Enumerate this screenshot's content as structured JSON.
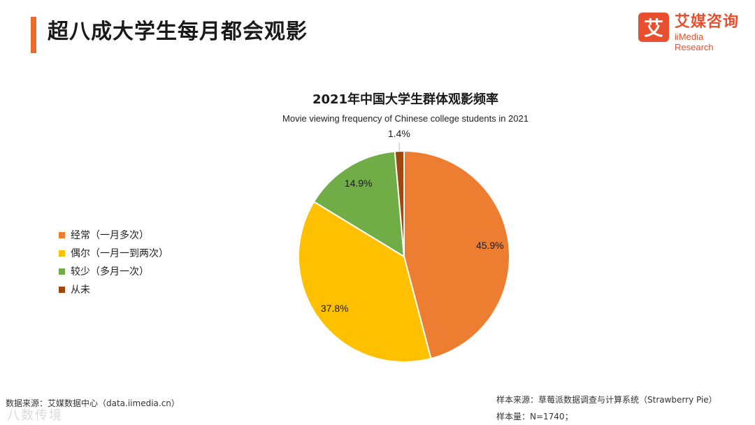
{
  "header": {
    "title": "超八成大学生每月都会观影"
  },
  "logo": {
    "mark": "艾",
    "name_cn": "艾媒咨询",
    "name_en": "iiMedia Research"
  },
  "colors": {
    "accent": "#ef6b2d",
    "brand": "#e94f2e"
  },
  "chart_data": {
    "type": "pie",
    "title": "2021年中国大学生群体观影频率",
    "subtitle": "Movie viewing frequency of Chinese college students in 2021",
    "slices": [
      {
        "label": "经常（一月多次）",
        "value": 45.9,
        "value_label": "45.9%",
        "color": "#ed7d31"
      },
      {
        "label": "偶尔（一月一到两次）",
        "value": 37.8,
        "value_label": "37.8%",
        "color": "#ffc000"
      },
      {
        "label": "较少（多月一次）",
        "value": 14.9,
        "value_label": "14.9%",
        "color": "#70ad47"
      },
      {
        "label": "从未",
        "value": 1.4,
        "value_label": "1.4%",
        "color": "#9e480e"
      }
    ],
    "legend_position": "left"
  },
  "footer": {
    "source_left": "数据来源：艾媒数据中心（data.iimedia.cn）",
    "sample_source": "样本来源：草莓派数据调查与计算系统（Strawberry Pie）",
    "sample_size": "样本量：N=1740；"
  },
  "watermark": "八数传境"
}
